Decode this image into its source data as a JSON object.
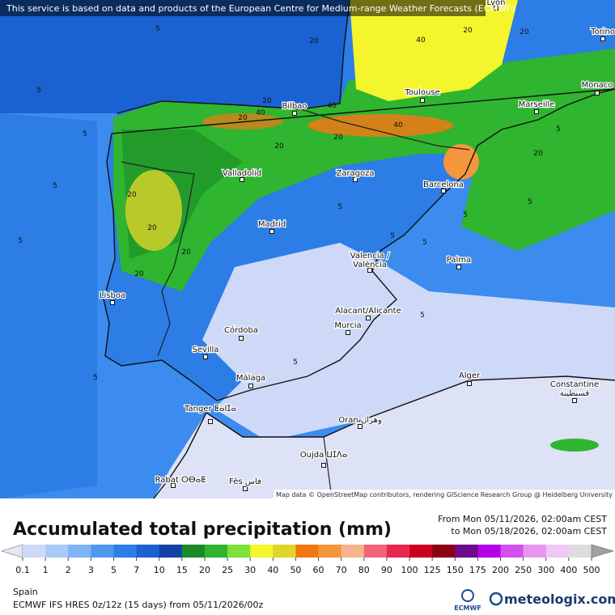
{
  "header": {
    "notice": "This service is based on data and products of the European Centre for Medium-range Weather Forecasts (ECMWF)"
  },
  "map": {
    "cities": [
      {
        "name": "Lyon"
      },
      {
        "name": "Torino"
      },
      {
        "name": "Monaco"
      },
      {
        "name": "Marseille"
      },
      {
        "name": "Toulouse"
      },
      {
        "name": "Bilbao"
      },
      {
        "name": "Zaragoza"
      },
      {
        "name": "Barcelona"
      },
      {
        "name": "Valladolid"
      },
      {
        "name": "Madrid"
      },
      {
        "name": "Valencia /",
        "alt": "València"
      },
      {
        "name": "Palma"
      },
      {
        "name": "Lisboa"
      },
      {
        "name": "Córdoba"
      },
      {
        "name": "Murcia"
      },
      {
        "name": "Alacant/Alicante"
      },
      {
        "name": "Sevilla"
      },
      {
        "name": "Málaga"
      },
      {
        "name": "Alger"
      },
      {
        "name": "Constantine",
        "alt": "قسنطينة"
      },
      {
        "name": "Tanger ⵟⴰⵏⵊⴰ"
      },
      {
        "name": "Oran وهران"
      },
      {
        "name": "Oujda ⵡⵊⴷⴰ"
      },
      {
        "name": "Rabat ⵔⴱⴰⵟ"
      },
      {
        "name": "Fès فاس"
      }
    ],
    "contour_labels": [
      5,
      5,
      5,
      5,
      5,
      20,
      20,
      20,
      40,
      40,
      40,
      40,
      20,
      20,
      20,
      20,
      20,
      20,
      5,
      5,
      5,
      5,
      5,
      5,
      5,
      5,
      5,
      20,
      20,
      20
    ],
    "attribution": "Map data © OpenStreetMap contributors, rendering GIScience Research Group @ Heidelberg University"
  },
  "legend": {
    "title": "Accumulated total precipitation (mm)",
    "period_from": "From Mon 05/11/2026, 02:00am CEST",
    "period_to": "to Mon 05/18/2026, 02:00am CEST",
    "labels": [
      0.1,
      1,
      2,
      3,
      5,
      7,
      10,
      15,
      20,
      25,
      30,
      40,
      50,
      60,
      70,
      80,
      90,
      100,
      125,
      150,
      175,
      200,
      250,
      300,
      400,
      500
    ],
    "below_color": "#e6e6f5",
    "colors": [
      "#cdd9f7",
      "#a9c9f7",
      "#7eb4f5",
      "#4f98ef",
      "#2c7de6",
      "#1a62d2",
      "#1540a6",
      "#1a8a2a",
      "#2fb52f",
      "#7ee03a",
      "#f5f52d",
      "#e0d42a",
      "#f07814",
      "#f5963c",
      "#f5b48c",
      "#f2647a",
      "#e82850",
      "#c8001e",
      "#8c0014",
      "#6e0a8c",
      "#b400e6",
      "#d250f0",
      "#e696f0",
      "#f0c8f5",
      "#dcdcdc"
    ],
    "above_color": "#a0a0a0"
  },
  "footer": {
    "region": "Spain",
    "model": "ECMWF IFS HRES 0z/12z (15 days) from  05/11/2026/00z",
    "brand_small": "ECMWF",
    "brand": "meteologix.com"
  }
}
